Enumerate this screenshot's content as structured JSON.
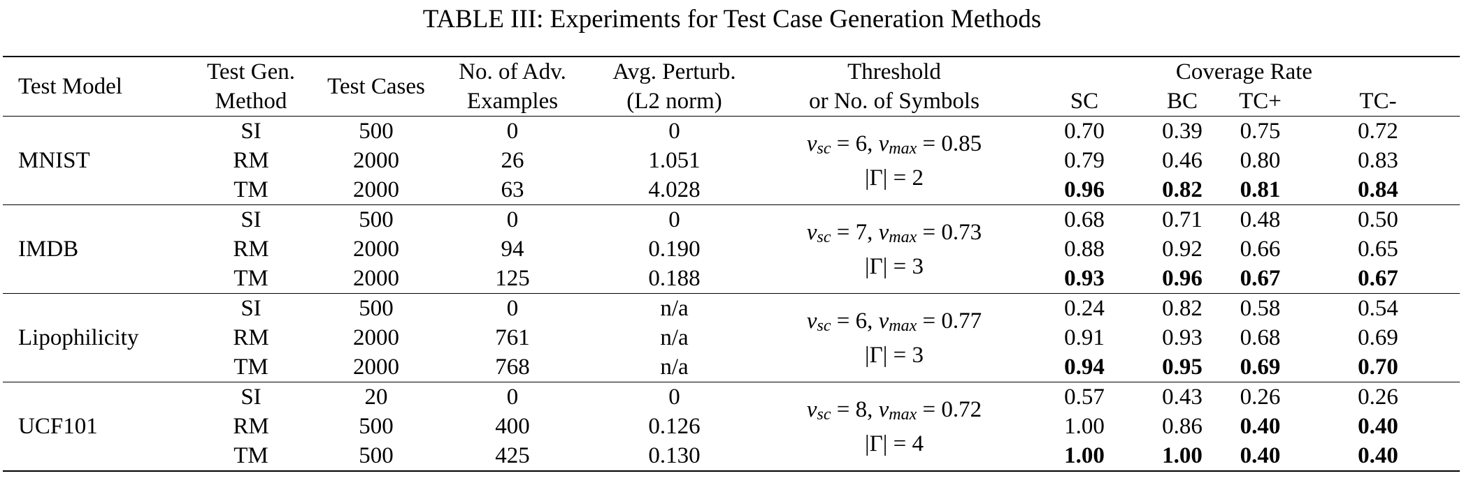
{
  "caption": "TABLE III: Experiments for Test Case Generation Methods",
  "headers": {
    "test_model": "Test Model",
    "method_l1": "Test Gen.",
    "method_l2": "Method",
    "test_cases": "Test Cases",
    "adv_l1": "No. of Adv.",
    "adv_l2": "Examples",
    "pert_l1": "Avg. Perturb.",
    "pert_l2": "(L2 norm)",
    "thr_l1": "Threshold",
    "thr_l2": "or No. of Symbols",
    "coverage": "Coverage Rate",
    "sc": "SC",
    "bc": "BC",
    "tcp": "TC+",
    "tcm": "TC-"
  },
  "groups": [
    {
      "model": "MNIST",
      "threshold": {
        "vsc": "6",
        "vmax": "0.85",
        "gamma": "2"
      },
      "rows": [
        {
          "method": "SI",
          "cases": "500",
          "adv": "0",
          "pert": "0",
          "sc": "0.70",
          "bc": "0.39",
          "tcp": "0.75",
          "tcm": "0.72"
        },
        {
          "method": "RM",
          "cases": "2000",
          "adv": "26",
          "pert": "1.051",
          "sc": "0.79",
          "bc": "0.46",
          "tcp": "0.80",
          "tcm": "0.83"
        },
        {
          "method": "TM",
          "cases": "2000",
          "adv": "63",
          "pert": "4.028",
          "sc": "0.96",
          "bc": "0.82",
          "tcp": "0.81",
          "tcm": "0.84"
        }
      ]
    },
    {
      "model": "IMDB",
      "threshold": {
        "vsc": "7",
        "vmax": "0.73",
        "gamma": "3"
      },
      "rows": [
        {
          "method": "SI",
          "cases": "500",
          "adv": "0",
          "pert": "0",
          "sc": "0.68",
          "bc": "0.71",
          "tcp": "0.48",
          "tcm": "0.50"
        },
        {
          "method": "RM",
          "cases": "2000",
          "adv": "94",
          "pert": "0.190",
          "sc": "0.88",
          "bc": "0.92",
          "tcp": "0.66",
          "tcm": "0.65"
        },
        {
          "method": "TM",
          "cases": "2000",
          "adv": "125",
          "pert": "0.188",
          "sc": "0.93",
          "bc": "0.96",
          "tcp": "0.67",
          "tcm": "0.67"
        }
      ]
    },
    {
      "model": "Lipophilicity",
      "threshold": {
        "vsc": "6",
        "vmax": "0.77",
        "gamma": "3"
      },
      "rows": [
        {
          "method": "SI",
          "cases": "500",
          "adv": "0",
          "pert": "n/a",
          "sc": "0.24",
          "bc": "0.82",
          "tcp": "0.58",
          "tcm": "0.54"
        },
        {
          "method": "RM",
          "cases": "2000",
          "adv": "761",
          "pert": "n/a",
          "sc": "0.91",
          "bc": "0.93",
          "tcp": "0.68",
          "tcm": "0.69"
        },
        {
          "method": "TM",
          "cases": "2000",
          "adv": "768",
          "pert": "n/a",
          "sc": "0.94",
          "bc": "0.95",
          "tcp": "0.69",
          "tcm": "0.70"
        }
      ]
    },
    {
      "model": "UCF101",
      "threshold": {
        "vsc": "8",
        "vmax": "0.72",
        "gamma": "4"
      },
      "rows": [
        {
          "method": "SI",
          "cases": "20",
          "adv": "0",
          "pert": "0",
          "sc": "0.57",
          "bc": "0.43",
          "tcp": "0.26",
          "tcm": "0.26"
        },
        {
          "method": "RM",
          "cases": "500",
          "adv": "400",
          "pert": "0.126",
          "sc": "1.00",
          "bc": "0.86",
          "tcp": "0.40",
          "tcm": "0.40"
        },
        {
          "method": "TM",
          "cases": "500",
          "adv": "425",
          "pert": "0.130",
          "sc": "1.00",
          "bc": "1.00",
          "tcp": "0.40",
          "tcm": "0.40"
        }
      ]
    }
  ]
}
